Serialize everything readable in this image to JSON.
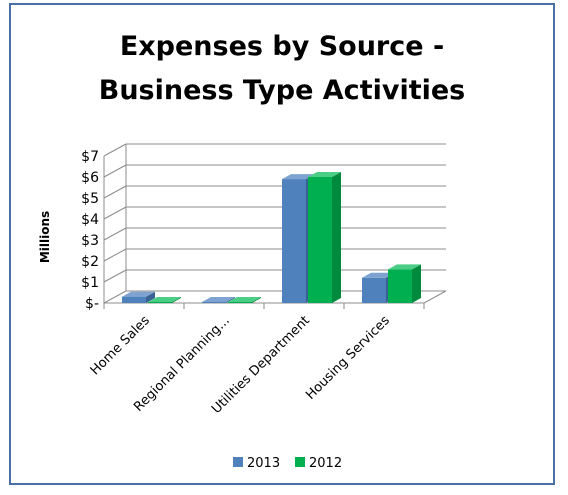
{
  "chart_data": {
    "type": "bar",
    "title_lines": [
      "Expenses by Source -",
      "Business Type Activities"
    ],
    "ylabel": "Millions",
    "xlabel": "",
    "categories": [
      "Home Sales",
      "Regional Planning...",
      "Utilities Department",
      "Housing Services"
    ],
    "series": [
      {
        "name": "2013",
        "values": [
          0.3,
          0.05,
          5.9,
          1.2
        ],
        "color": "#4f81bd",
        "side": "#3a6192",
        "top": "#7fa3d1"
      },
      {
        "name": "2012",
        "values": [
          0.05,
          0.05,
          6.0,
          1.6
        ],
        "color": "#00b050",
        "side": "#008a3e",
        "top": "#4ccd86"
      }
    ],
    "ylim": [
      0,
      7
    ],
    "yticks": [
      "$-",
      "$1",
      "$2",
      "$3",
      "$4",
      "$5",
      "$6",
      "$7"
    ],
    "grid": true,
    "legend_position": "bottom",
    "three_d": true
  },
  "colors": {
    "frame": "#4a6fa5",
    "grid": "#8c8c8c"
  }
}
